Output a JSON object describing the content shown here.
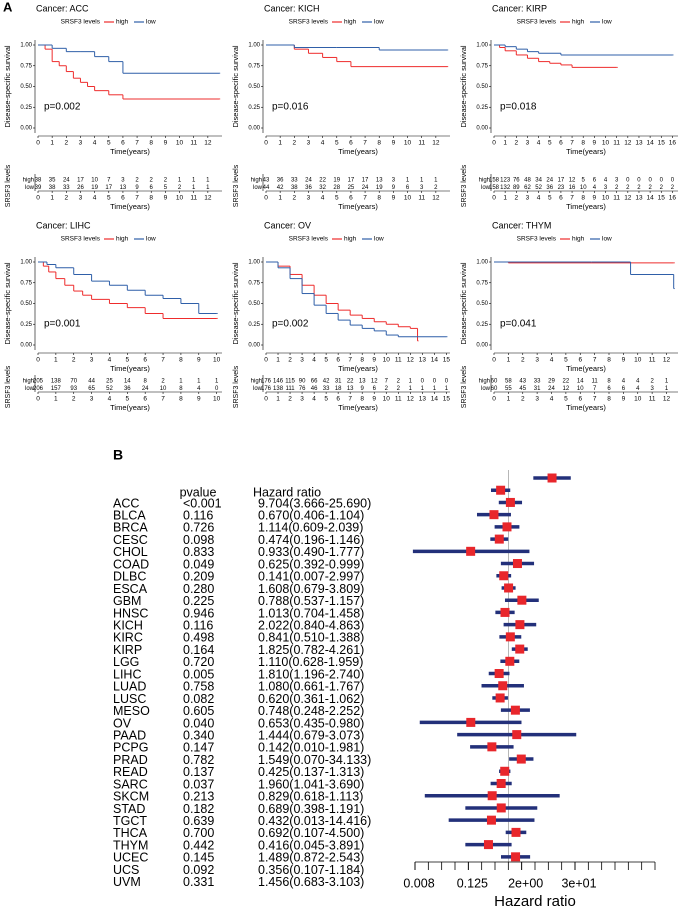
{
  "panels": {
    "a": "A",
    "b": "B"
  },
  "chart_data": [
    {
      "type": "survival",
      "title": "Cancer: ACC",
      "legend_title": "SRSF3 levels",
      "xlabel": "Time(years)",
      "ylabel": "Disease-specific survival",
      "annotation": "p=0.002",
      "xlim": [
        0,
        13
      ],
      "xticks": [
        0,
        1,
        2,
        3,
        4,
        5,
        6,
        7,
        8,
        9,
        10,
        11,
        12
      ],
      "ylim": [
        0,
        1
      ],
      "yticks": [
        {
          "value": 0,
          "label": "0.00"
        },
        0.25,
        {
          "value": 0.5,
          "label": "0.50"
        },
        0.75,
        {
          "value": 1,
          "label": "1.00"
        }
      ],
      "series": [
        {
          "name": "high",
          "color": "#ee2c2c",
          "x": [
            0,
            0.5,
            1,
            1.5,
            2,
            2.5,
            3,
            3.5,
            4,
            5,
            6,
            12.8
          ],
          "values": [
            1,
            0.95,
            0.8,
            0.75,
            0.68,
            0.6,
            0.55,
            0.5,
            0.45,
            0.4,
            0.35,
            0.35
          ]
        },
        {
          "name": "low",
          "color": "#2f5fa8",
          "x": [
            0,
            1,
            2,
            3,
            4,
            5,
            6,
            12.8
          ],
          "values": [
            1,
            0.96,
            0.92,
            0.92,
            0.86,
            0.8,
            0.66,
            0.66
          ]
        }
      ],
      "risk_table": {
        "label": "SRSF3 levels",
        "rows": [
          {
            "name": "high",
            "values": [
              38,
              35,
              24,
              17,
              10,
              7,
              3,
              2,
              2,
              2,
              1,
              1,
              1
            ]
          },
          {
            "name": "low",
            "values": [
              39,
              38,
              33,
              26,
              19,
              17,
              13,
              9,
              6,
              5,
              2,
              1,
              1
            ]
          }
        ]
      }
    },
    {
      "type": "survival",
      "title": "Cancer: KICH",
      "legend_title": "SRSF3 levels",
      "xlabel": "Time(years)",
      "ylabel": "Disease-specific survival",
      "annotation": "p=0.016",
      "xlim": [
        0,
        13
      ],
      "xticks": [
        0,
        1,
        2,
        3,
        4,
        5,
        6,
        7,
        8,
        9,
        10,
        11,
        12
      ],
      "ylim": [
        0,
        1
      ],
      "yticks": [
        {
          "value": 0,
          "label": "0.00"
        },
        0.25,
        {
          "value": 0.5,
          "label": "0.50"
        },
        0.75,
        {
          "value": 1,
          "label": "1.00"
        }
      ],
      "series": [
        {
          "name": "high",
          "color": "#ee2c2c",
          "x": [
            0,
            2,
            3,
            4,
            5,
            6,
            12.8
          ],
          "values": [
            1,
            0.95,
            0.9,
            0.85,
            0.8,
            0.74,
            0.74
          ]
        },
        {
          "name": "low",
          "color": "#2f5fa8",
          "x": [
            0,
            2,
            5,
            8,
            12.8
          ],
          "values": [
            1,
            0.97,
            0.97,
            0.94,
            0.94
          ]
        }
      ],
      "risk_table": {
        "label": "SRSF3 levels",
        "rows": [
          {
            "name": "high",
            "values": [
              43,
              36,
              33,
              24,
              22,
              19,
              17,
              17,
              13,
              3,
              1,
              1,
              1
            ]
          },
          {
            "name": "low",
            "values": [
              44,
              42,
              38,
              36,
              32,
              28,
              25,
              24,
              19,
              9,
              6,
              3,
              2
            ]
          }
        ]
      }
    },
    {
      "type": "survival",
      "title": "Cancer: KIRP",
      "legend_title": "SRSF3 levels",
      "xlabel": "Time(years)",
      "ylabel": "Disease-specific survival",
      "annotation": "p=0.018",
      "xlim": [
        0,
        16.5
      ],
      "xticks": [
        0,
        1,
        2,
        3,
        4,
        5,
        6,
        7,
        8,
        9,
        10,
        11,
        12,
        13,
        14,
        15,
        16
      ],
      "ylim": [
        0,
        1
      ],
      "yticks": [
        {
          "value": 0,
          "label": "0.00"
        },
        0.25,
        {
          "value": 0.5,
          "label": "0.50"
        },
        0.75,
        {
          "value": 1,
          "label": "1.00"
        }
      ],
      "series": [
        {
          "name": "high",
          "color": "#ee2c2c",
          "x": [
            0,
            0.5,
            1,
            2,
            3,
            4,
            5,
            6,
            7,
            11
          ],
          "values": [
            1,
            0.97,
            0.93,
            0.88,
            0.84,
            0.8,
            0.78,
            0.76,
            0.73,
            0.73
          ]
        },
        {
          "name": "low",
          "color": "#2f5fa8",
          "x": [
            0,
            1,
            2,
            3,
            4,
            6,
            16
          ],
          "values": [
            1,
            0.98,
            0.95,
            0.92,
            0.9,
            0.88,
            0.88
          ]
        }
      ],
      "risk_table": {
        "label": "SRSF3 levels",
        "rows": [
          {
            "name": "high",
            "values": [
              158,
              123,
              76,
              48,
              34,
              24,
              17,
              12,
              5,
              6,
              4,
              3,
              0,
              0,
              0,
              0,
              0
            ]
          },
          {
            "name": "low",
            "values": [
              158,
              132,
              89,
              62,
              52,
              36,
              23,
              16,
              10,
              4,
              3,
              2,
              2,
              2,
              2,
              2,
              2
            ]
          }
        ]
      }
    },
    {
      "type": "survival",
      "title": "Cancer: LIHC",
      "legend_title": "SRSF3 levels",
      "xlabel": "Time(years)",
      "ylabel": "Disease-specific survival",
      "annotation": "p=0.001",
      "xlim": [
        0,
        10.3
      ],
      "xticks": [
        0,
        1,
        2,
        3,
        4,
        5,
        6,
        7,
        8,
        9,
        10
      ],
      "ylim": [
        0,
        1
      ],
      "yticks": [
        {
          "value": 0,
          "label": "0.00"
        },
        0.25,
        {
          "value": 0.5,
          "label": "0.50"
        },
        0.75,
        {
          "value": 1,
          "label": "1.00"
        }
      ],
      "series": [
        {
          "name": "high",
          "color": "#ee2c2c",
          "x": [
            0,
            0.3,
            0.6,
            1,
            1.5,
            2,
            2.5,
            3,
            4,
            5,
            6,
            7,
            10
          ],
          "values": [
            1,
            0.95,
            0.88,
            0.8,
            0.72,
            0.65,
            0.6,
            0.55,
            0.5,
            0.45,
            0.38,
            0.32,
            0.32
          ]
        },
        {
          "name": "low",
          "color": "#2f5fa8",
          "x": [
            0,
            0.5,
            1,
            2,
            3,
            4,
            5,
            6,
            7,
            8,
            9,
            10
          ],
          "values": [
            1,
            0.97,
            0.93,
            0.85,
            0.77,
            0.72,
            0.66,
            0.6,
            0.56,
            0.5,
            0.38,
            0.38
          ]
        }
      ],
      "risk_table": {
        "label": "SRSF3 levels",
        "rows": [
          {
            "name": "high",
            "values": [
              205,
              138,
              70,
              44,
              25,
              14,
              8,
              2,
              1,
              1,
              1
            ]
          },
          {
            "name": "low",
            "values": [
              206,
              157,
              93,
              65,
              52,
              36,
              24,
              10,
              8,
              4,
              0
            ]
          }
        ]
      }
    },
    {
      "type": "survival",
      "title": "Cancer: OV",
      "legend_title": "SRSF3 levels",
      "xlabel": "Time(years)",
      "ylabel": "Disease-specific survival",
      "annotation": "p=0.002",
      "xlim": [
        0,
        15.3
      ],
      "xticks": [
        0,
        1,
        2,
        3,
        4,
        5,
        6,
        7,
        8,
        9,
        10,
        11,
        12,
        13,
        14,
        15
      ],
      "ylim": [
        0,
        1
      ],
      "yticks": [
        {
          "value": 0,
          "label": "0.00"
        },
        0.25,
        {
          "value": 0.5,
          "label": "0.50"
        },
        0.75,
        {
          "value": 1,
          "label": "1.00"
        }
      ],
      "series": [
        {
          "name": "high",
          "color": "#ee2c2c",
          "x": [
            0,
            1,
            2,
            3,
            4,
            5,
            6,
            7,
            8,
            9,
            10,
            11,
            12,
            12.6
          ],
          "values": [
            1,
            0.95,
            0.85,
            0.72,
            0.6,
            0.5,
            0.42,
            0.36,
            0.32,
            0.28,
            0.25,
            0.22,
            0.2,
            0.05
          ]
        },
        {
          "name": "low",
          "color": "#2f5fa8",
          "x": [
            0,
            1,
            2,
            3,
            4,
            5,
            6,
            7,
            8,
            9,
            10,
            11,
            15
          ],
          "values": [
            1,
            0.93,
            0.8,
            0.62,
            0.48,
            0.38,
            0.3,
            0.24,
            0.2,
            0.17,
            0.12,
            0.1,
            0.1
          ]
        }
      ],
      "risk_table": {
        "label": "SRSF3 levels",
        "rows": [
          {
            "name": "high",
            "values": [
              176,
              146,
              115,
              90,
              66,
              42,
              31,
              22,
              13,
              12,
              7,
              2,
              1,
              0,
              0,
              0
            ]
          },
          {
            "name": "low",
            "values": [
              176,
              138,
              111,
              76,
              46,
              33,
              18,
              13,
              9,
              6,
              2,
              2,
              1,
              1,
              1,
              1
            ]
          }
        ]
      }
    },
    {
      "type": "survival",
      "title": "Cancer: THYM",
      "legend_title": "SRSF3 levels",
      "xlabel": "Time(years)",
      "ylabel": "Disease-specific survival",
      "annotation": "p=0.041",
      "xlim": [
        0,
        12.8
      ],
      "xticks": [
        0,
        1,
        2,
        3,
        4,
        5,
        6,
        7,
        8,
        9,
        10,
        11,
        12
      ],
      "ylim": [
        0,
        1
      ],
      "yticks": [
        {
          "value": 0,
          "label": "0.00"
        },
        0.25,
        {
          "value": 0.5,
          "label": "0.50"
        },
        0.75,
        {
          "value": 1,
          "label": "1.00"
        }
      ],
      "series": [
        {
          "name": "high",
          "color": "#ee2c2c",
          "x": [
            0,
            1,
            12.5
          ],
          "values": [
            1,
            0.99,
            0.99
          ]
        },
        {
          "name": "low",
          "color": "#2f5fa8",
          "x": [
            0,
            6.8,
            9.5,
            12.5
          ],
          "values": [
            1,
            1,
            0.85,
            0.68
          ]
        }
      ],
      "risk_table": {
        "label": "SRSF3 levels",
        "rows": [
          {
            "name": "high",
            "values": [
              60,
              58,
              43,
              33,
              29,
              22,
              14,
              11,
              8,
              4,
              4,
              2,
              1
            ]
          },
          {
            "name": "low",
            "values": [
              60,
              55,
              45,
              31,
              24,
              12,
              10,
              7,
              6,
              6,
              4,
              3,
              1
            ]
          }
        ]
      }
    },
    {
      "type": "forest",
      "columns": [
        "pvalue",
        "Hazard ratio"
      ],
      "xlabel": "Hazard ratio",
      "xlog": true,
      "xlim": [
        0.0078125,
        2048
      ],
      "reference_line": 1,
      "xticks": [
        {
          "value": 0.0078125,
          "label": "0.008"
        },
        0.125,
        {
          "value": 2,
          "label": "2e+00"
        },
        {
          "value": 32,
          "label": "3e+01"
        }
      ],
      "minor_xticks": [
        0.0078125,
        0.015625,
        0.03125,
        0.0625,
        0.125,
        0.25,
        0.5,
        1,
        2,
        4,
        8,
        16,
        32,
        64,
        128,
        256,
        512,
        1024,
        2048
      ],
      "color": "#e8262b",
      "ci_color": "#23307a",
      "categories": [
        "ACC",
        "BLCA",
        "BRCA",
        "CESC",
        "CHOL",
        "COAD",
        "DLBC",
        "ESCA",
        "GBM",
        "HNSC",
        "KICH",
        "KIRC",
        "KIRP",
        "LGG",
        "LIHC",
        "LUAD",
        "LUSC",
        "MESO",
        "OV",
        "PAAD",
        "PCPG",
        "PRAD",
        "READ",
        "SARC",
        "SKCM",
        "STAD",
        "TGCT",
        "THCA",
        "THYM",
        "UCEC",
        "UCS",
        "UVM"
      ],
      "pvalues": [
        "<0.001",
        "0.116",
        "0.726",
        "0.098",
        "0.833",
        "0.049",
        "0.209",
        "0.280",
        "0.225",
        "0.946",
        "0.116",
        "0.498",
        "0.164",
        "0.720",
        "0.005",
        "0.758",
        "0.082",
        "0.605",
        "0.040",
        "0.340",
        "0.147",
        "0.782",
        "0.137",
        "0.037",
        "0.213",
        "0.182",
        "0.639",
        "0.700",
        "0.442",
        "0.145",
        "0.092",
        "0.331"
      ],
      "hr_labels": [
        "9.704(3.666-25.690)",
        "0.670(0.406-1.104)",
        "1.114(0.609-2.039)",
        "0.474(0.196-1.146)",
        "0.933(0.490-1.777)",
        "0.625(0.392-0.999)",
        "0.141(0.007-2.997)",
        "1.608(0.679-3.809)",
        "0.788(0.537-1.157)",
        "1.013(0.704-1.458)",
        "2.022(0.840-4.863)",
        "0.841(0.510-1.388)",
        "1.825(0.782-4.261)",
        "1.110(0.628-1.959)",
        "1.810(1.196-2.740)",
        "1.080(0.661-1.767)",
        "0.620(0.361-1.062)",
        "0.748(0.248-2.252)",
        "0.653(0.435-0.980)",
        "1.444(0.679-3.073)",
        "0.142(0.010-1.981)",
        "1.549(0.070-34.133)",
        "0.425(0.137-1.313)",
        "1.960(1.041-3.690)",
        "0.829(0.618-1.113)",
        "0.689(0.398-1.191)",
        "0.432(0.013-14.416)",
        "0.692(0.107-4.500)",
        "0.416(0.045-3.891)",
        "1.489(0.872-2.543)",
        "0.356(0.107-1.184)",
        "1.456(0.683-3.103)"
      ],
      "values": [
        9.704,
        0.67,
        1.114,
        0.474,
        0.933,
        0.625,
        0.141,
        1.608,
        0.788,
        1.013,
        2.022,
        0.841,
        1.825,
        1.11,
        1.81,
        1.08,
        0.62,
        0.748,
        0.653,
        1.444,
        0.142,
        1.549,
        0.425,
        1.96,
        0.829,
        0.689,
        0.432,
        0.692,
        0.416,
        1.489,
        0.356,
        1.456
      ],
      "lower": [
        3.666,
        0.406,
        0.609,
        0.196,
        0.49,
        0.392,
        0.007,
        0.679,
        0.537,
        0.704,
        0.84,
        0.51,
        0.782,
        0.628,
        1.196,
        0.661,
        0.361,
        0.248,
        0.435,
        0.679,
        0.01,
        0.07,
        0.137,
        1.041,
        0.618,
        0.398,
        0.013,
        0.107,
        0.045,
        0.872,
        0.107,
        0.683
      ],
      "upper": [
        25.69,
        1.104,
        2.039,
        1.146,
        1.777,
        0.999,
        2.997,
        3.809,
        1.157,
        1.458,
        4.863,
        1.388,
        4.261,
        1.959,
        2.74,
        1.767,
        1.062,
        2.252,
        0.98,
        3.073,
        1.981,
        34.133,
        1.313,
        3.69,
        1.113,
        1.191,
        14.416,
        4.5,
        3.891,
        2.543,
        1.184,
        3.103
      ]
    }
  ]
}
